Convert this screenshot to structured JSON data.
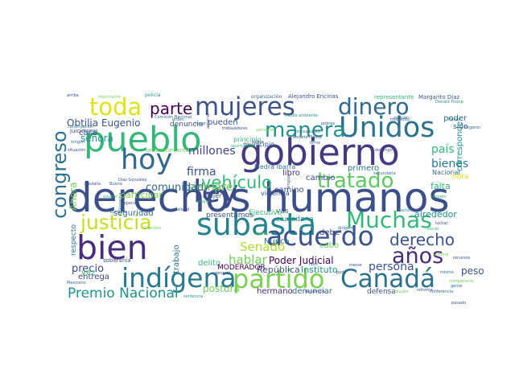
{
  "words": [
    {
      "text": "derechos humanos",
      "color": "#3b4f8a"
    },
    {
      "text": "gobierno",
      "color": "#443983"
    },
    {
      "text": "pueblo",
      "color": "#35b779"
    },
    {
      "text": "Unidos",
      "color": "#2c728e"
    },
    {
      "text": "subasta",
      "color": "#26828e"
    },
    {
      "text": "acuerdo",
      "color": "#3b528b"
    },
    {
      "text": "indígena",
      "color": "#2a788e"
    },
    {
      "text": "Canadá",
      "color": "#2c728e"
    },
    {
      "text": "bien",
      "color": "#472d7b"
    },
    {
      "text": "hoy",
      "color": "#31688e"
    },
    {
      "text": "ley",
      "color": "#3e4989"
    },
    {
      "text": "partido",
      "color": "#7ad151"
    },
    {
      "text": "Muchas",
      "color": "#35b779"
    },
    {
      "text": "mujeres",
      "color": "#3b528b"
    },
    {
      "text": "dinero",
      "color": "#31688e"
    },
    {
      "text": "toda",
      "color": "#dde318"
    },
    {
      "text": "manera",
      "color": "#21918c"
    },
    {
      "text": "tratado",
      "color": "#5ec962"
    },
    {
      "text": "justicia",
      "color": "#c2df23"
    },
    {
      "text": "congreso",
      "color": "#2c728e"
    },
    {
      "text": "vehículo",
      "color": "#35b779"
    },
    {
      "text": "años",
      "color": "#472d7b"
    },
    {
      "text": "derecho",
      "color": "#3b528b"
    },
    {
      "text": "parte",
      "color": "#440154"
    },
    {
      "text": "Premio Nacional",
      "color": "#21918c"
    },
    {
      "text": "millones",
      "color": "#414487"
    },
    {
      "text": "Senado",
      "color": "#addc30"
    },
    {
      "text": "firma",
      "color": "#3b528b"
    },
    {
      "text": "siempre",
      "color": "#6ece58"
    },
    {
      "text": "comunidad",
      "color": "#31688e"
    },
    {
      "text": "hablar",
      "color": "#6ece58"
    },
    {
      "text": "persona",
      "color": "#3b528b"
    },
    {
      "text": "bienes",
      "color": "#2a788e"
    },
    {
      "text": "país",
      "color": "#35b779"
    },
    {
      "text": "Obtilia Eugenio",
      "color": "#3b528b"
    },
    {
      "text": "señora",
      "color": "#21918c"
    },
    {
      "text": "precio",
      "color": "#3e4989"
    },
    {
      "text": "Poder Judicial",
      "color": "#440154"
    },
    {
      "text": "República",
      "color": "#3b528b"
    },
    {
      "text": "Instituto",
      "color": "#21918c"
    },
    {
      "text": "peso",
      "color": "#3b528b"
    },
    {
      "text": "postura",
      "color": "#6ece58"
    },
    {
      "text": "hermano",
      "color": "#482878"
    },
    {
      "text": "denunciar",
      "color": "#31688e"
    },
    {
      "text": "defensa",
      "color": "#3b528b"
    },
    {
      "text": "alrededor",
      "color": "#21918c"
    },
    {
      "text": "falta",
      "color": "#35b779"
    },
    {
      "text": "debe",
      "color": "#3e4989"
    },
    {
      "text": "cabo",
      "color": "#6ece58"
    },
    {
      "text": "primero",
      "color": "#2a788e"
    },
    {
      "text": "cambio",
      "color": "#3b528b"
    },
    {
      "text": "libro",
      "color": "#472d7b"
    },
    {
      "text": "camino",
      "color": "#3b528b"
    },
    {
      "text": "Nunca",
      "color": "#2c728e"
    },
    {
      "text": "vas",
      "color": "#3b528b"
    },
    {
      "text": "ciudadana",
      "color": "#21918c"
    },
    {
      "text": "Ejecutivo",
      "color": "#35b779"
    },
    {
      "text": "presentamos",
      "color": "#3b528b"
    },
    {
      "text": "delito",
      "color": "#35b779"
    },
    {
      "text": "seguridad",
      "color": "#31688e"
    },
    {
      "text": "entrega",
      "color": "#414487"
    },
    {
      "text": "participar",
      "color": "#7ad151"
    },
    {
      "text": "pueden",
      "color": "#3b528b"
    },
    {
      "text": "sido",
      "color": "#3b528b"
    },
    {
      "text": "poder",
      "color": "#31688e"
    },
    {
      "text": "corresponde",
      "color": "#21918c"
    },
    {
      "text": "casa",
      "color": "#3b528b"
    },
    {
      "text": "vez",
      "color": "#35b779"
    },
    {
      "text": "Ahora",
      "color": "#6ece58"
    },
    {
      "text": "respecto",
      "color": "#2a788e"
    },
    {
      "text": "juicio",
      "color": "#3e4989"
    },
    {
      "text": "denuncia",
      "color": "#3b528b"
    },
    {
      "text": "municipio",
      "color": "#31688e"
    },
    {
      "text": "principio",
      "color": "#35b779"
    },
    {
      "text": "mujer",
      "color": "#3b528b"
    },
    {
      "text": "violencia",
      "color": "#3b528b"
    },
    {
      "text": "Piedra Ibarra",
      "color": "#2c728e"
    },
    {
      "text": "Nacional",
      "color": "#31688e"
    },
    {
      "text": "hora",
      "color": "#dde318"
    },
    {
      "text": "trabajo",
      "color": "#2a788e"
    },
    {
      "text": "MODERADOR",
      "color": "#440154"
    },
    {
      "text": "soberanía",
      "color": "#3b528b"
    },
    {
      "text": "Alejandro Encinas",
      "color": "#3b528b"
    },
    {
      "text": "Margarito Díaz",
      "color": "#3b528b"
    },
    {
      "text": "representante",
      "color": "#35b779"
    },
    {
      "text": "organización",
      "color": "#31688e"
    },
    {
      "text": "policía",
      "color": "#21918c"
    },
    {
      "text": "Comisión Nacional",
      "color": "#31688e"
    },
    {
      "text": "reconocimiento",
      "color": "#6ece58"
    },
    {
      "text": "trabajadores",
      "color": "#3b528b"
    },
    {
      "text": "presupuesto",
      "color": "#31688e"
    },
    {
      "text": "Rosario Piedra",
      "color": "#3b528b"
    },
    {
      "text": "medio ambiente",
      "color": "#21918c"
    },
    {
      "text": "importante",
      "color": "#7ad151"
    },
    {
      "text": "oportunidad",
      "color": "#35b779"
    },
    {
      "text": "especial",
      "color": "#3b528b"
    },
    {
      "text": "continuación",
      "color": "#2c728e"
    },
    {
      "text": "situación",
      "color": "#3b528b"
    },
    {
      "text": "Díaz González",
      "color": "#3b528b"
    },
    {
      "text": "Mexicano",
      "color": "#31688e"
    },
    {
      "text": "arriba",
      "color": "#3b528b"
    },
    {
      "text": "ejemplo",
      "color": "#31688e"
    },
    {
      "text": "nación",
      "color": "#21918c"
    },
    {
      "text": "respeto",
      "color": "#35b779"
    },
    {
      "text": "conferencia",
      "color": "#31688e"
    },
    {
      "text": "reforma",
      "color": "#3b528b"
    },
    {
      "text": "resulta",
      "color": "#6ece58"
    },
    {
      "text": "desarrollo",
      "color": "#3b528b"
    },
    {
      "text": "sentencia",
      "color": "#21918c"
    },
    {
      "text": "general",
      "color": "#3b528b"
    },
    {
      "text": "gente",
      "color": "#31688e"
    },
    {
      "text": "compañeros",
      "color": "#6ece58"
    },
    {
      "text": "libre",
      "color": "#2c728e"
    },
    {
      "text": "pobres",
      "color": "#3b528b"
    },
    {
      "text": "reunión",
      "color": "#31688e"
    },
    {
      "text": "momento",
      "color": "#3b528b"
    },
    {
      "text": "Donald Trump",
      "color": "#21918c"
    },
    {
      "text": "secundaria",
      "color": "#31688e"
    },
    {
      "text": "domingo",
      "color": "#3b528b"
    },
    {
      "text": "firme",
      "color": "#2c728e"
    },
    {
      "text": "recursos",
      "color": "#3b528b"
    },
    {
      "text": "social",
      "color": "#35b779"
    },
    {
      "text": "luchar",
      "color": "#3b528b"
    },
    {
      "text": "mismo",
      "color": "#31688e"
    },
    {
      "text": "menor",
      "color": "#3b528b"
    },
    {
      "text": "nuevo",
      "color": "#6ece58"
    },
    {
      "text": "dirigente",
      "color": "#2c728e"
    },
    {
      "text": "pudo",
      "color": "#3b528b"
    },
    {
      "text": "Guerrero",
      "color": "#6ece58"
    },
    {
      "text": "Suprema",
      "color": "#2c728e"
    },
    {
      "text": "lengua",
      "color": "#3b528b"
    },
    {
      "text": "Buena",
      "color": "#31688e"
    },
    {
      "text": "ayudar",
      "color": "#35b779"
    },
    {
      "text": "medalla",
      "color": "#3b528b"
    },
    {
      "text": "ningún",
      "color": "#31688e"
    },
    {
      "text": "tiempo",
      "color": "#3b528b"
    },
    {
      "text": "hacer",
      "color": "#2c728e"
    },
    {
      "text": "anterior",
      "color": "#3b528b"
    },
    {
      "text": "personas",
      "color": "#6ece58"
    },
    {
      "text": "sigue",
      "color": "#3b528b"
    },
    {
      "text": "orden",
      "color": "#31688e"
    },
    {
      "text": "mayor",
      "color": "#35b779"
    },
    {
      "text": "realidad",
      "color": "#3b528b"
    },
    {
      "text": "Rafael",
      "color": "#21918c"
    },
    {
      "text": "llegaron",
      "color": "#31688e"
    },
    {
      "text": "víctima",
      "color": "#6ece58"
    },
    {
      "text": "pasado",
      "color": "#3b528b"
    }
  ]
}
